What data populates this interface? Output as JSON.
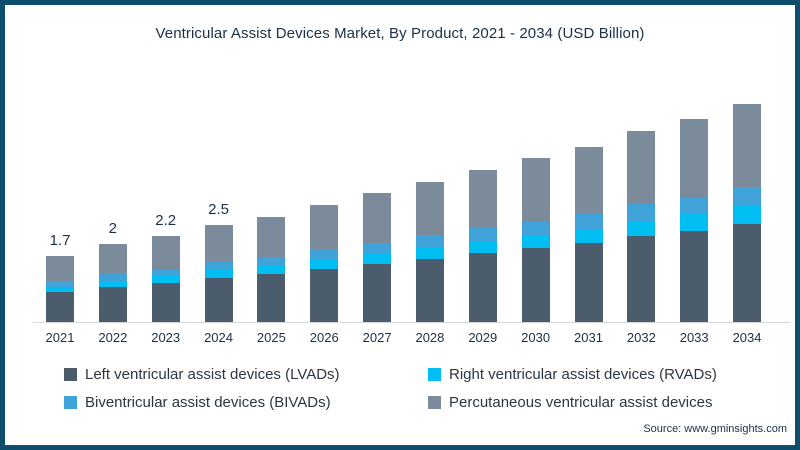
{
  "title": "Ventricular Assist Devices Market, By Product, 2021 - 2034 (USD Billion)",
  "source": "Source: www.gminsights.com",
  "colors": {
    "frame_border": "#0f4d6d",
    "text": "#1c3048",
    "legend_text": "#2b3642",
    "axis_line": "#d6d6d6",
    "lvad": "#4b5c6d",
    "rvad": "#00bdf2",
    "bivad": "#3fa3d9",
    "pvad": "#7c8b9b"
  },
  "legend": {
    "items": [
      {
        "label": "Left ventricular assist devices (LVADs)",
        "color": "#4b5c6d"
      },
      {
        "label": "Right ventricular assist devices (RVADs)",
        "color": "#00bdf2"
      },
      {
        "label": "Biventricular assist devices (BIVADs)",
        "color": "#3fa3d9"
      },
      {
        "label": "Percutaneous ventricular assist devices",
        "color": "#7c8b9b"
      }
    ]
  },
  "chart_data": {
    "type": "bar",
    "stacked": true,
    "title": "Ventricular Assist Devices Market, By Product, 2021 - 2034 (USD Billion)",
    "xlabel": "",
    "ylabel": "USD Billion",
    "ylim": [
      0,
      6
    ],
    "grid": false,
    "legend_position": "bottom",
    "categories": [
      "2021",
      "2022",
      "2023",
      "2024",
      "2025",
      "2026",
      "2027",
      "2028",
      "2029",
      "2030",
      "2031",
      "2032",
      "2033",
      "2034"
    ],
    "series": [
      {
        "name": "Left ventricular assist devices (LVADs)",
        "color": "#4b5c6d",
        "values": [
          0.77,
          0.9,
          0.99,
          1.13,
          1.22,
          1.35,
          1.49,
          1.62,
          1.76,
          1.89,
          2.03,
          2.21,
          2.34,
          2.52
        ]
      },
      {
        "name": "Right ventricular assist devices (RVADs)",
        "color": "#00bdf2",
        "values": [
          0.14,
          0.16,
          0.18,
          0.2,
          0.22,
          0.24,
          0.26,
          0.29,
          0.31,
          0.34,
          0.36,
          0.39,
          0.42,
          0.45
        ]
      },
      {
        "name": "Biventricular assist devices (BIVADs)",
        "color": "#3fa3d9",
        "values": [
          0.15,
          0.17,
          0.19,
          0.21,
          0.23,
          0.26,
          0.28,
          0.31,
          0.33,
          0.36,
          0.39,
          0.42,
          0.45,
          0.48
        ]
      },
      {
        "name": "Percutaneous ventricular assist devices",
        "color": "#7c8b9b",
        "values": [
          0.64,
          0.77,
          0.84,
          0.96,
          1.03,
          1.15,
          1.27,
          1.38,
          1.5,
          1.61,
          1.72,
          1.88,
          1.99,
          2.15
        ]
      }
    ],
    "totals": [
      1.7,
      2.0,
      2.2,
      2.5,
      2.7,
      3.0,
      3.3,
      3.6,
      3.9,
      4.2,
      4.5,
      4.9,
      5.2,
      5.6
    ],
    "bar_labels": [
      "1.7",
      "2",
      "2.2",
      "2.5"
    ]
  }
}
